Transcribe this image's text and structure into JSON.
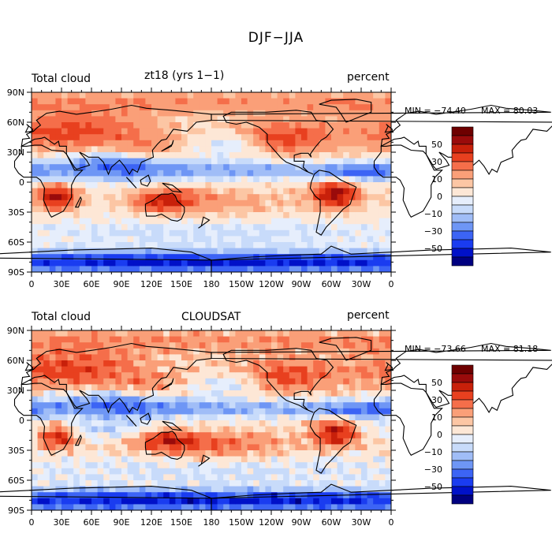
{
  "title": "DJF−JJA",
  "colors": {
    "levels": [
      "#000080",
      "#0011c8",
      "#1a3cf0",
      "#3c64f5",
      "#6e96f5",
      "#a0bdf7",
      "#c8dbfa",
      "#e6eefc",
      "#fde7d6",
      "#fcc6a4",
      "#fa9f78",
      "#f56e4a",
      "#e8401f",
      "#c8200a",
      "#9a0b0b",
      "#6e0000"
    ],
    "coast": "#000000"
  },
  "panels": [
    {
      "label_left": "Total cloud",
      "label_center": "zt18 (yrs 1−1)",
      "label_right": "percent",
      "min_text": "MIN = −74.40",
      "max_text": "MAX =  80.03"
    },
    {
      "label_left": "Total cloud",
      "label_center": "CLOUDSAT",
      "label_right": "percent",
      "min_text": "MIN = −73.66",
      "max_text": "MAX =  81.18"
    }
  ],
  "chart_data": {
    "type": "heatmap",
    "title": "DJF−JJA",
    "variable": "Total cloud",
    "units": "percent",
    "x_ticks": [
      "0",
      "30E",
      "60E",
      "90E",
      "120E",
      "150E",
      "180",
      "150W",
      "120W",
      "90W",
      "60W",
      "30W",
      "0"
    ],
    "y_ticks": [
      "90N",
      "60N",
      "30N",
      "0",
      "30S",
      "60S",
      "90S"
    ],
    "colorbar_labels": [
      "50",
      "30",
      "10",
      "0",
      "−10",
      "−30",
      "−50"
    ],
    "contour_levels": [
      -70,
      -60,
      -50,
      -40,
      -30,
      -20,
      -10,
      -5,
      0,
      5,
      10,
      20,
      30,
      40,
      50,
      60,
      70
    ],
    "fields": [
      "zt18 (yrs 1−1)",
      "CLOUDSAT"
    ]
  }
}
